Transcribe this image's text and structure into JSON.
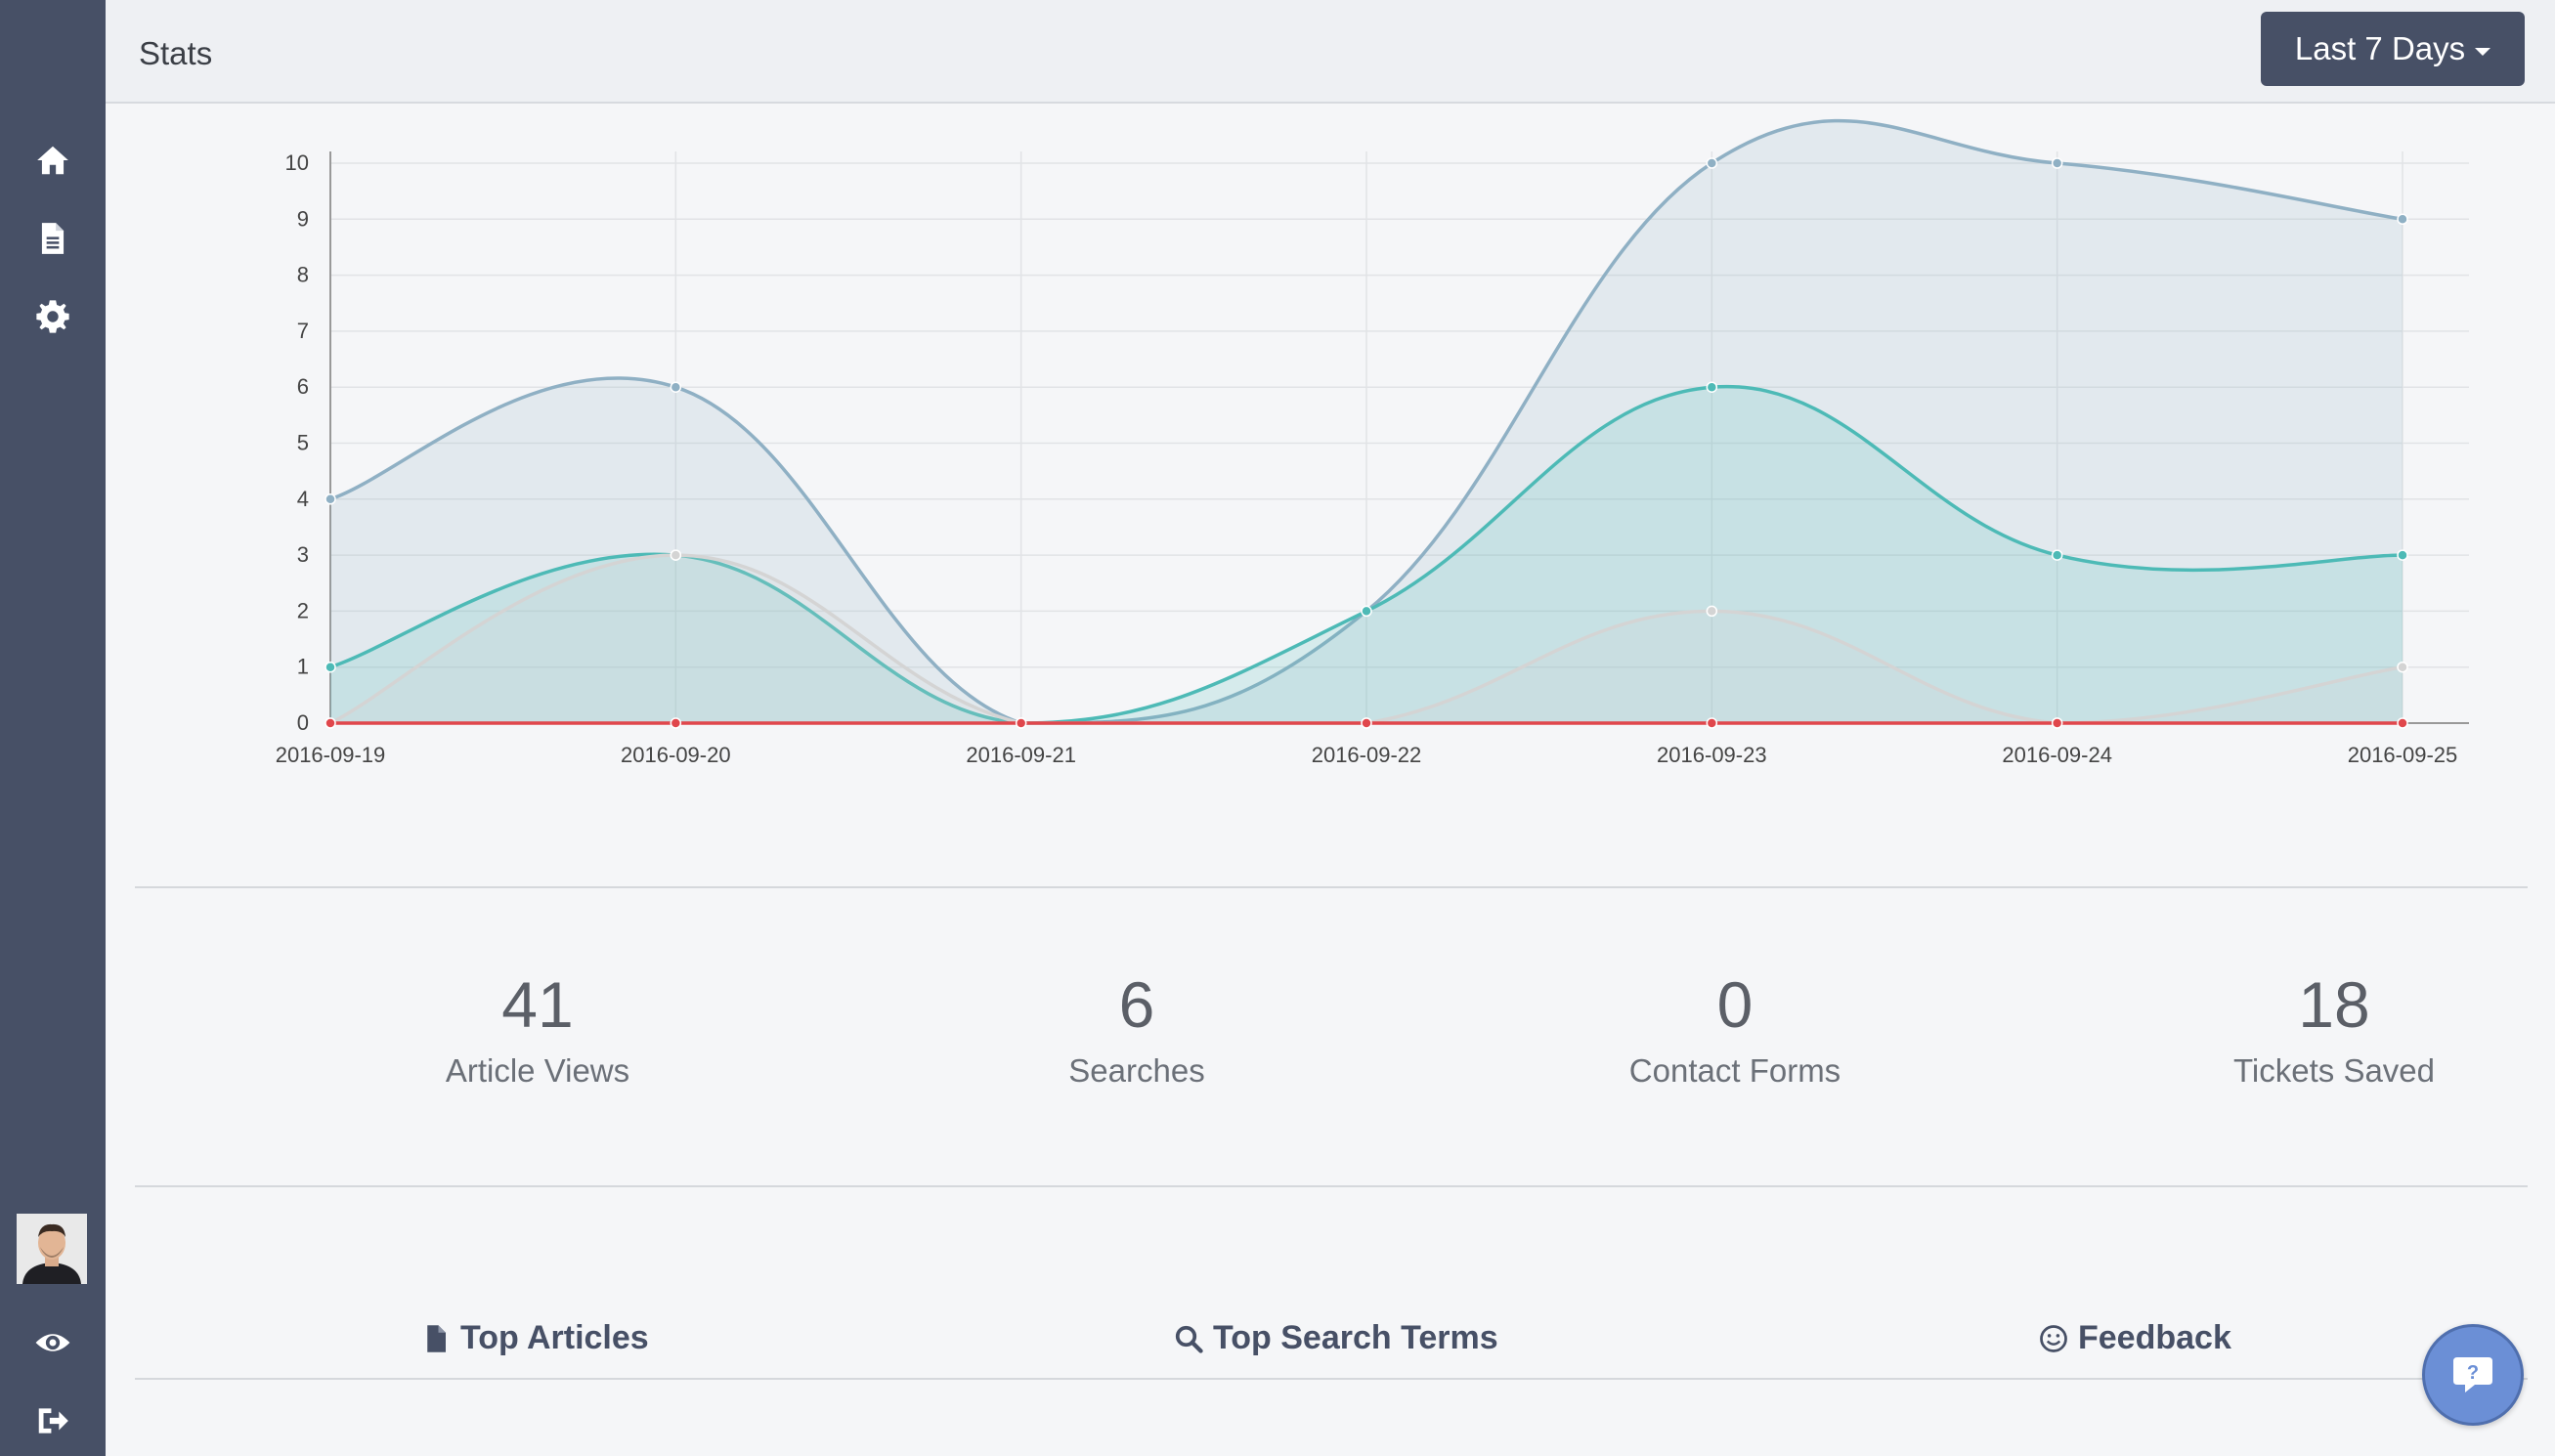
{
  "header": {
    "title": "Stats",
    "range_label": "Last 7 Days"
  },
  "sidebar": {
    "icons": [
      "home-icon",
      "document-icon",
      "gear-icon"
    ],
    "bottom_icons": [
      "eye-icon",
      "sign-out-icon"
    ]
  },
  "chart_data": {
    "type": "area",
    "x": [
      "2016-09-19",
      "2016-09-20",
      "2016-09-21",
      "2016-09-22",
      "2016-09-23",
      "2016-09-24",
      "2016-09-25"
    ],
    "ylim": [
      0,
      10
    ],
    "yticks": [
      0,
      1,
      2,
      3,
      4,
      5,
      6,
      7,
      8,
      9,
      10
    ],
    "grid": true,
    "series": [
      {
        "values": [
          4,
          6,
          0,
          2,
          10,
          10,
          9
        ],
        "color": "#8fb0c4"
      },
      {
        "values": [
          1,
          3,
          0,
          2,
          6,
          3,
          3
        ],
        "color": "#4dbab6"
      },
      {
        "values": [
          0,
          3,
          0,
          0,
          2,
          0,
          1
        ],
        "color": "#d4d4d4"
      },
      {
        "values": [
          0,
          0,
          0,
          0,
          0,
          0,
          0
        ],
        "color": "#e0474c"
      }
    ]
  },
  "stats": [
    {
      "value": "41",
      "label": "Article Views"
    },
    {
      "value": "6",
      "label": "Searches"
    },
    {
      "value": "0",
      "label": "Contact Forms"
    },
    {
      "value": "18",
      "label": "Tickets Saved"
    }
  ],
  "tabs": {
    "top_articles": "Top Articles",
    "top_search_terms": "Top Search Terms",
    "feedback": "Feedback"
  }
}
